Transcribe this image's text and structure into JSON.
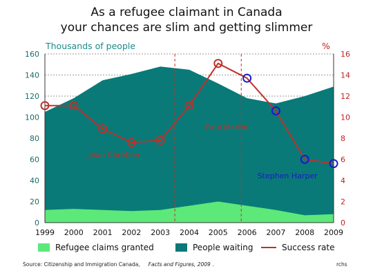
{
  "title_line1": "As a refugee claimant in Canada",
  "title_line2": "your chances are slim and getting slimmer",
  "source": {
    "prefix": "Source: Citizenship and Immigration Canada,",
    "publication": "Facts and Figures, 2009",
    "suffix": "."
  },
  "credit": "rchs",
  "chart_data": {
    "type": "area",
    "ylabel": "Thousands of people",
    "y2label": "%",
    "ylim": [
      0,
      160
    ],
    "y2lim": [
      0,
      16
    ],
    "yticks": [
      0,
      20,
      40,
      60,
      80,
      100,
      120,
      140,
      160
    ],
    "y2ticks": [
      0,
      2,
      4,
      6,
      8,
      10,
      12,
      14,
      16
    ],
    "x": [
      "1999",
      "2000",
      "2001",
      "2002",
      "2003",
      "2004",
      "2005",
      "2006",
      "2007",
      "2008",
      "2009"
    ],
    "series": [
      {
        "name": "Refugee claims granted",
        "kind": "area",
        "color": "#5de87a",
        "values": [
          12,
          13,
          12,
          11,
          12,
          16,
          20,
          16,
          12,
          7,
          8
        ]
      },
      {
        "name": "People waiting",
        "kind": "area",
        "color": "#0a7a78",
        "values": [
          105,
          118,
          135,
          141,
          148,
          145,
          132,
          118,
          113,
          120,
          129
        ]
      },
      {
        "name": "Success rate",
        "kind": "line",
        "axis": "right",
        "color": "#c0302a",
        "values": [
          11.1,
          11.1,
          8.9,
          7.6,
          7.8,
          11.1,
          15.1,
          13.7,
          10.6,
          6.0,
          5.6
        ]
      }
    ],
    "marker_colors": [
      "#c0302a",
      "#c0302a",
      "#c0302a",
      "#c0302a",
      "#c0302a",
      "#c0302a",
      "#c0302a",
      "#1a1ac8",
      "#1a1ac8",
      "#1a1ac8",
      "#1a1ac8"
    ],
    "period_dividers": [
      2003.5,
      2005.8
    ],
    "annotations": [
      {
        "text": "Jean Chrétien",
        "year": 2001.4,
        "value": 62,
        "color": "#c0302a"
      },
      {
        "text": "Paul Martin",
        "year": 2005.3,
        "value": 88,
        "color": "#c0302a"
      },
      {
        "text": "Stephen Harper",
        "year": 2007.4,
        "value": 42,
        "color": "#1a1ac8"
      }
    ],
    "grid": true,
    "legend_position": "bottom"
  }
}
